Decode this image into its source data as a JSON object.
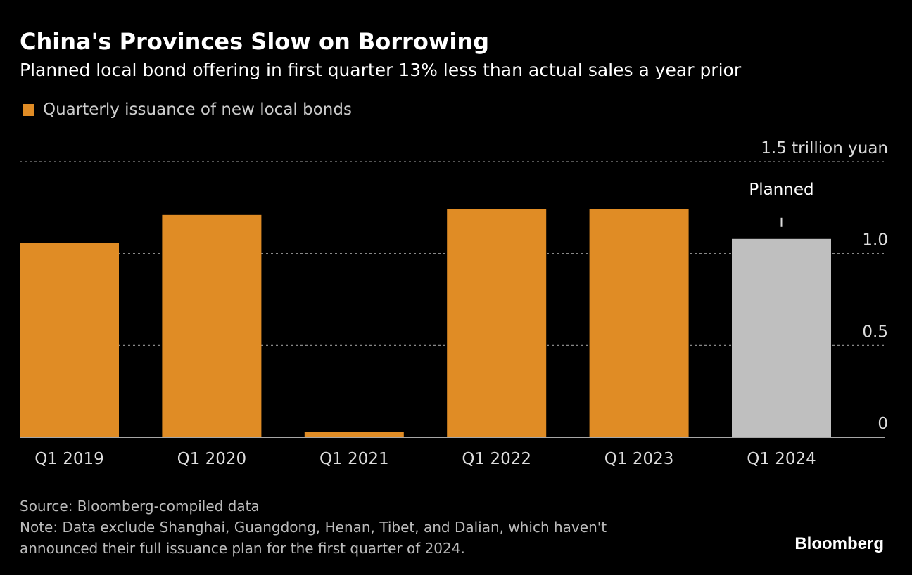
{
  "title": "China's Provinces Slow on Borrowing",
  "subtitle": "Planned local bond offering in first quarter 13% less than actual sales a year prior",
  "legend": {
    "label": "Quarterly issuance of new local bonds",
    "color": "#E08C25"
  },
  "source": "Source: Bloomberg-compiled data",
  "note_line1": "Note: Data exclude Shanghai, Guangdong, Henan, Tibet, and Dalian, which haven't",
  "note_line2": "announced their full issuance plan for the first quarter of 2024.",
  "logo": "Bloomberg",
  "chart_data": {
    "type": "bar",
    "categories": [
      "Q1 2019",
      "Q1 2020",
      "Q1 2021",
      "Q1 2022",
      "Q1 2023",
      "Q1 2024"
    ],
    "values": [
      1.06,
      1.21,
      0.03,
      1.24,
      1.24,
      1.08
    ],
    "bar_colors": [
      "#E08C25",
      "#E08C25",
      "#E08C25",
      "#E08C25",
      "#E08C25",
      "#BFBFBF"
    ],
    "annotation": {
      "category": "Q1 2024",
      "text": "Planned"
    },
    "y_ticks": [
      0,
      0.5,
      1.0,
      1.5
    ],
    "y_tick_labels": [
      "0",
      "0.5",
      "1.0",
      "1.5 trillion yuan"
    ],
    "ylim": [
      0,
      1.5
    ],
    "ylabel": "trillion yuan",
    "grid": true
  }
}
